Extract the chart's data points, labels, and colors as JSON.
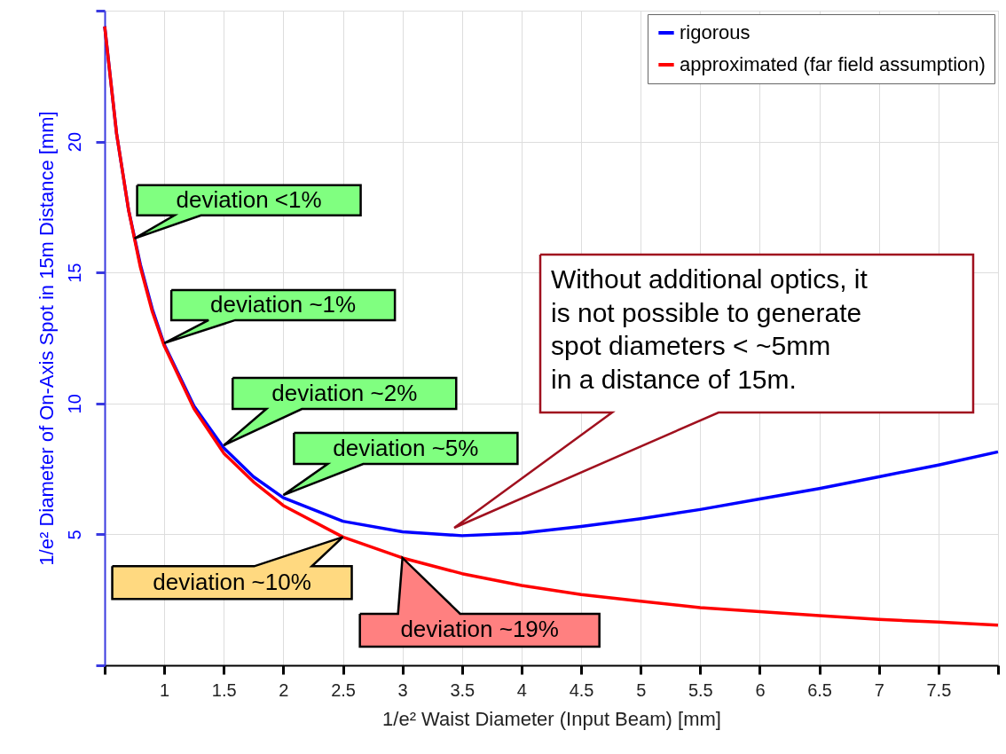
{
  "chart_data": {
    "type": "line",
    "xlabel": "1/e² Waist Diameter (Input Beam) [mm]",
    "ylabel": "1/e² Diameter of On-Axis Spot in 15m Distance [mm]",
    "x": [
      0.5,
      0.6,
      0.7,
      0.8,
      0.9,
      1,
      1.25,
      1.5,
      1.75,
      2,
      2.5,
      3,
      3.5,
      4,
      4.5,
      5,
      5.5,
      6,
      6.5,
      7,
      7.5,
      8
    ],
    "series": [
      {
        "name": "rigorous",
        "color": "#0000ff",
        "values": [
          24.4,
          20.3,
          17.4,
          15.3,
          13.6,
          12.25,
          9.9,
          8.3,
          7.2,
          6.4,
          5.5,
          5.1,
          4.95,
          5.05,
          5.3,
          5.6,
          5.95,
          6.35,
          6.75,
          7.2,
          7.65,
          8.15
        ]
      },
      {
        "name": "approximated (far field assumption)",
        "color": "#ff0000",
        "values": [
          24.4,
          20.3,
          17.4,
          15.2,
          13.5,
          12.2,
          9.8,
          8.1,
          7.0,
          6.1,
          4.9,
          4.1,
          3.5,
          3.05,
          2.7,
          2.45,
          2.2,
          2.05,
          1.9,
          1.75,
          1.65,
          1.53
        ]
      }
    ],
    "xlim": [
      0.5,
      8
    ],
    "ylim": [
      0,
      25
    ],
    "xticks": [
      {
        "value": 0.5,
        "label": null
      },
      1,
      1.5,
      2,
      2.5,
      3,
      3.5,
      4,
      4.5,
      5,
      5.5,
      6,
      6.5,
      7,
      7.5,
      {
        "value": 8,
        "label": null
      }
    ],
    "yticks": [
      {
        "value": 0,
        "label": null
      },
      5,
      10,
      15,
      20,
      {
        "value": 25,
        "label": null
      }
    ],
    "grid": true,
    "legend": "top right",
    "line_style": "solid",
    "marker": "none",
    "annotations": [
      {
        "text": "deviation <1%",
        "x": 0.75,
        "y": 16.3
      },
      {
        "text": "deviation ~1%",
        "x": 1.0,
        "y": 12.3
      },
      {
        "text": "deviation ~2%",
        "x": 1.5,
        "y": 8.4
      },
      {
        "text": "deviation ~5%",
        "x": 2.0,
        "y": 6.5
      },
      {
        "text": "deviation ~10%",
        "x": 2.5,
        "y": 4.9
      },
      {
        "text": "deviation ~19%",
        "x": 3.0,
        "y": 4.1
      },
      "Without additional optics, it\nis not possible to generate\nspot diameters < ~5mm\nin a distance of 15m."
    ]
  }
}
